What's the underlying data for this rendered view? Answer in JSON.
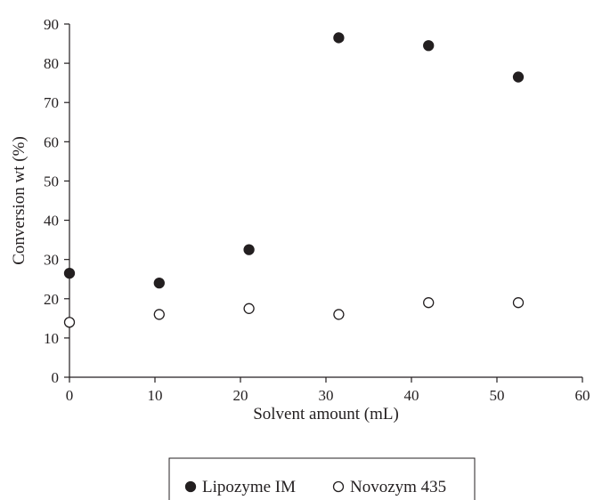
{
  "chart_data": {
    "type": "scatter",
    "title": "",
    "xlabel": "Solvent amount (mL)",
    "ylabel": "Conversion wt (%)",
    "xlim": [
      0,
      60
    ],
    "ylim": [
      0,
      90
    ],
    "xticks": [
      0,
      10,
      20,
      30,
      40,
      50,
      60
    ],
    "yticks": [
      0,
      10,
      20,
      30,
      40,
      50,
      60,
      70,
      80,
      90
    ],
    "grid": false,
    "legend_position": "bottom",
    "series": [
      {
        "name": "Lipozyme IM",
        "marker": "filled-circle",
        "color": "#231f20",
        "points": [
          {
            "x": 0,
            "y": 26.5
          },
          {
            "x": 10.5,
            "y": 24
          },
          {
            "x": 21,
            "y": 32.5
          },
          {
            "x": 31.5,
            "y": 86.5
          },
          {
            "x": 42,
            "y": 84.5
          },
          {
            "x": 52.5,
            "y": 76.5
          }
        ]
      },
      {
        "name": "Novozym 435",
        "marker": "open-circle",
        "color": "#231f20",
        "points": [
          {
            "x": 0,
            "y": 14
          },
          {
            "x": 10.5,
            "y": 16
          },
          {
            "x": 21,
            "y": 17.5
          },
          {
            "x": 31.5,
            "y": 16
          },
          {
            "x": 42,
            "y": 19
          },
          {
            "x": 52.5,
            "y": 19
          }
        ]
      }
    ]
  }
}
